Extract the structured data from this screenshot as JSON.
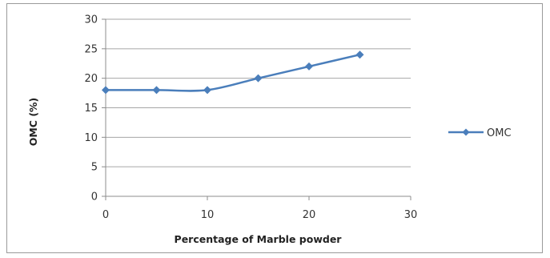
{
  "chart_data": {
    "type": "line",
    "title": "",
    "xlabel": "Percentage of Marble powder",
    "ylabel": "OMC (%)",
    "xlim": [
      0,
      30
    ],
    "ylim": [
      0,
      30
    ],
    "x_ticks": [
      0,
      10,
      20,
      30
    ],
    "y_ticks": [
      0,
      5,
      10,
      15,
      20,
      25,
      30
    ],
    "grid": "horizontal",
    "legend_position": "right",
    "series": [
      {
        "name": "OMC",
        "color": "#4a7ebb",
        "marker": "diamond",
        "x": [
          0,
          5,
          10,
          15,
          20,
          25
        ],
        "y": [
          18,
          18,
          18,
          20,
          22,
          24
        ]
      }
    ]
  }
}
